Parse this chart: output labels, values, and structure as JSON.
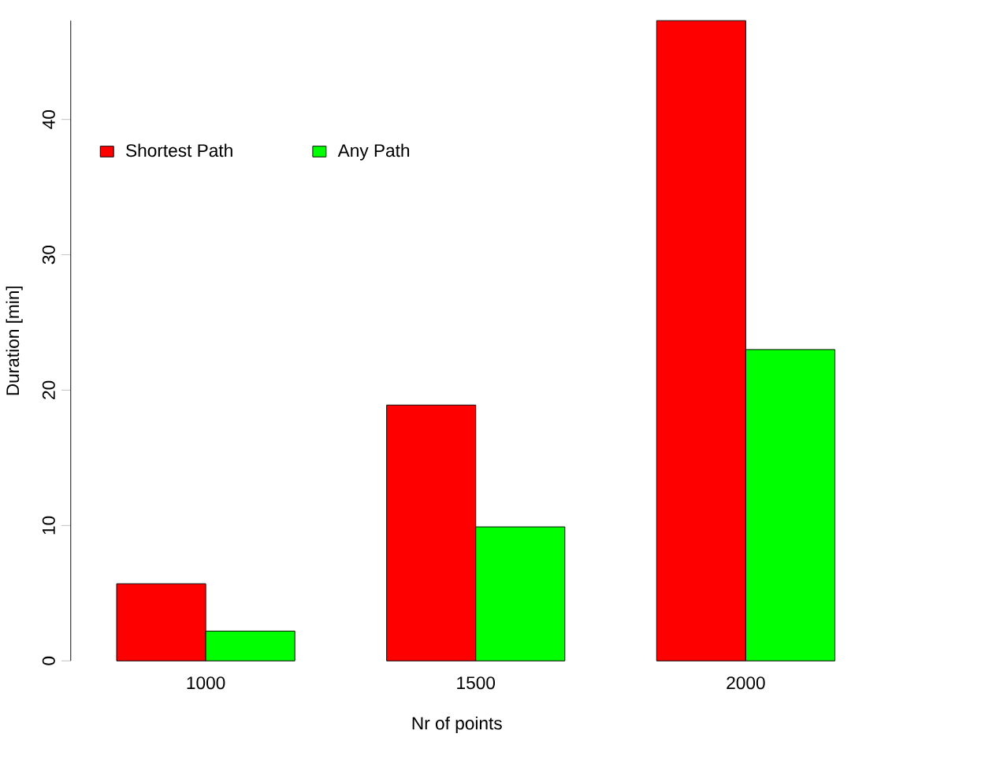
{
  "chart_data": {
    "type": "bar",
    "xlabel": "Nr of points",
    "ylabel": "Duration [min]",
    "categories": [
      "1000",
      "1500",
      "2000"
    ],
    "series": [
      {
        "name": "Shortest Path",
        "color": "#ff0000",
        "values": [
          5.7,
          18.9,
          47.3
        ]
      },
      {
        "name": "Any Path",
        "color": "#00ff00",
        "values": [
          2.2,
          9.9,
          23.0
        ]
      }
    ],
    "ylim": [
      0,
      47.3
    ],
    "yticks": [
      0,
      10,
      20,
      30,
      40
    ],
    "legend": "top left"
  }
}
